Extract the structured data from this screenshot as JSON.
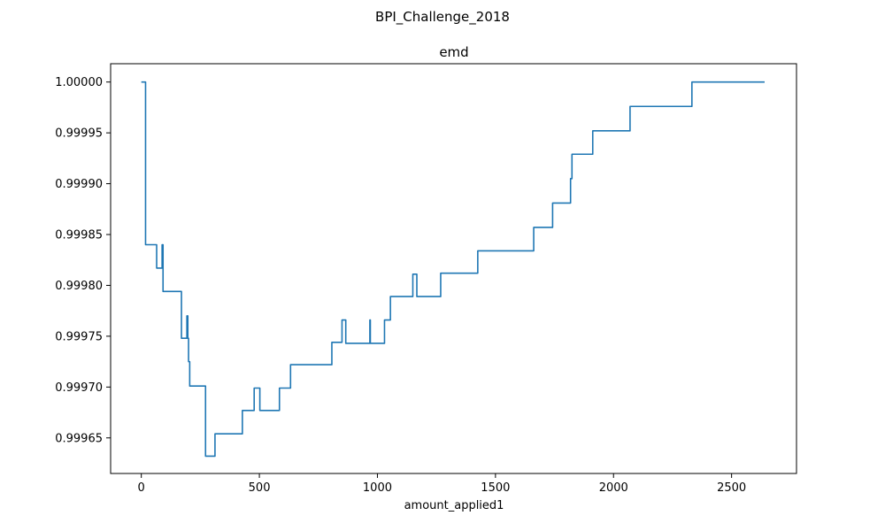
{
  "figure": {
    "suptitle": "BPI_Challenge_2018"
  },
  "chart_data": {
    "type": "line",
    "title": "emd",
    "xlabel": "amount_applied1",
    "ylabel": "",
    "xlim": [
      -130,
      2775
    ],
    "ylim": [
      0.999615,
      1.000018
    ],
    "x_ticks": [
      0,
      500,
      1000,
      1500,
      2000,
      2500
    ],
    "y_ticks": [
      0.99965,
      0.9997,
      0.99975,
      0.9998,
      0.99985,
      0.9999,
      0.99995,
      1.0
    ],
    "x_tick_labels": [
      "0",
      "500",
      "1000",
      "1500",
      "2000",
      "2500"
    ],
    "y_tick_labels": [
      "0.99965",
      "0.99970",
      "0.99975",
      "0.99980",
      "0.99985",
      "0.99990",
      "0.99995",
      "1.00000"
    ],
    "grid": false,
    "line_color": "#1f77b4",
    "series": [
      {
        "x": [
          0,
          18,
          18,
          65,
          65,
          88,
          88,
          92,
          92,
          170,
          170,
          193,
          193,
          197,
          197,
          200,
          200,
          205,
          205,
          207,
          207,
          272,
          272,
          312,
          312,
          428,
          428,
          478,
          478,
          502,
          502,
          585,
          585,
          632,
          632,
          807,
          807,
          850,
          850,
          866,
          866,
          968,
          968,
          970,
          970,
          1030,
          1030,
          1055,
          1055,
          1150,
          1150,
          1167,
          1167,
          1268,
          1268,
          1425,
          1425,
          1662,
          1662,
          1742,
          1742,
          1818,
          1818,
          1824,
          1824,
          1830,
          1830,
          1912,
          1912,
          2070,
          2070,
          2332,
          2332,
          2640
        ],
        "y": [
          1.0,
          1.0,
          0.99984,
          0.99984,
          0.999817,
          0.999817,
          0.99984,
          0.99984,
          0.999794,
          0.999794,
          0.999748,
          0.999748,
          0.99977,
          0.99977,
          0.999748,
          0.999748,
          0.999725,
          0.999725,
          0.999701,
          0.999701,
          0.999701,
          0.999701,
          0.999632,
          0.999632,
          0.999654,
          0.999654,
          0.999677,
          0.999677,
          0.999699,
          0.999699,
          0.999677,
          0.999677,
          0.999699,
          0.999699,
          0.999722,
          0.999722,
          0.999744,
          0.999744,
          0.999766,
          0.999766,
          0.999743,
          0.999743,
          0.999766,
          0.999766,
          0.999743,
          0.999743,
          0.999766,
          0.999766,
          0.999789,
          0.999789,
          0.999811,
          0.999811,
          0.999789,
          0.999789,
          0.999812,
          0.999812,
          0.999834,
          0.999834,
          0.999857,
          0.999857,
          0.999881,
          0.999881,
          0.999905,
          0.999905,
          0.999929,
          0.999929,
          0.999929,
          0.999929,
          0.999952,
          0.999952,
          0.999976,
          0.999976,
          1.0,
          1.0
        ]
      }
    ]
  }
}
